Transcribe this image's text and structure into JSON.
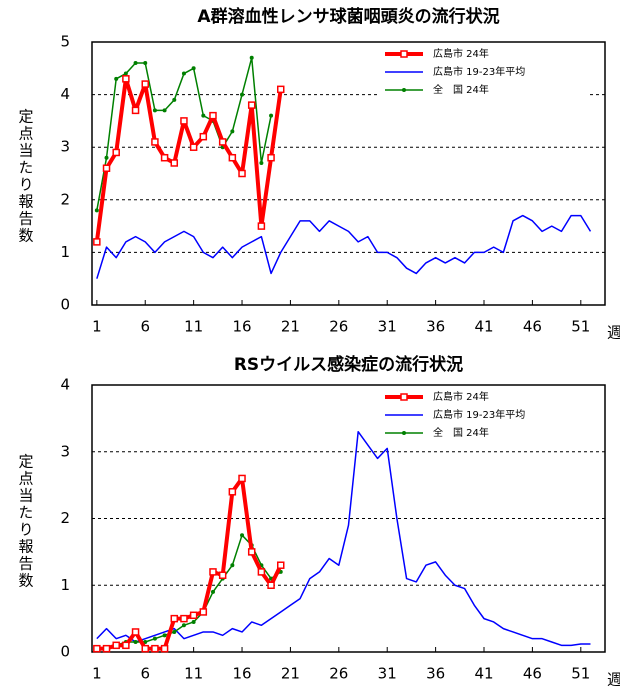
{
  "chart_data": [
    {
      "type": "line",
      "title": "A群溶血性レンサ球菌咽頭炎の流行状況",
      "y_label": "定点当たり報告数",
      "x_label": "週",
      "x": [
        1,
        2,
        3,
        4,
        5,
        6,
        7,
        8,
        9,
        10,
        11,
        12,
        13,
        14,
        15,
        16,
        17,
        18,
        19,
        20,
        21,
        22,
        23,
        24,
        25,
        26,
        27,
        28,
        29,
        30,
        31,
        32,
        33,
        34,
        35,
        36,
        37,
        38,
        39,
        40,
        41,
        42,
        43,
        44,
        45,
        46,
        47,
        48,
        49,
        50,
        51,
        52
      ],
      "xlim": [
        0.5,
        53.5
      ],
      "xticks": [
        1,
        6,
        11,
        16,
        21,
        26,
        31,
        36,
        41,
        46,
        51
      ],
      "ylim": [
        0,
        5
      ],
      "yticks": [
        0,
        1,
        2,
        3,
        4,
        5
      ],
      "grid": true,
      "legend": "upper right",
      "series": [
        {
          "name": "広島市 24年",
          "color": "#ff0000",
          "values": [
            1.2,
            2.6,
            2.9,
            4.3,
            3.7,
            4.2,
            3.1,
            2.8,
            2.7,
            3.5,
            3.0,
            3.2,
            3.6,
            3.1,
            2.8,
            2.5,
            3.8,
            1.5,
            2.8,
            4.1,
            null,
            null,
            null,
            null,
            null,
            null,
            null,
            null,
            null,
            null,
            null,
            null,
            null,
            null,
            null,
            null,
            null,
            null,
            null,
            null,
            null,
            null,
            null,
            null,
            null,
            null,
            null,
            null,
            null,
            null,
            null,
            null
          ]
        },
        {
          "name": "広島市 19-23年平均",
          "color": "#0000ff",
          "values": [
            0.5,
            1.1,
            0.9,
            1.2,
            1.3,
            1.2,
            1.0,
            1.2,
            1.3,
            1.4,
            1.3,
            1.0,
            0.9,
            1.1,
            0.9,
            1.1,
            1.2,
            1.3,
            0.6,
            1.0,
            1.3,
            1.6,
            1.6,
            1.4,
            1.6,
            1.5,
            1.4,
            1.2,
            1.3,
            1.0,
            1.0,
            0.9,
            0.7,
            0.6,
            0.8,
            0.9,
            0.8,
            0.9,
            0.8,
            1.0,
            1.0,
            1.1,
            1.0,
            1.6,
            1.7,
            1.6,
            1.4,
            1.5,
            1.4,
            1.7,
            1.7,
            1.4
          ]
        },
        {
          "name": "全　国 24年",
          "color": "#008000",
          "values": [
            1.8,
            2.8,
            4.3,
            4.4,
            4.6,
            4.6,
            3.7,
            3.7,
            3.9,
            4.4,
            4.5,
            3.6,
            3.5,
            3.0,
            3.3,
            4.0,
            4.7,
            2.7,
            3.6,
            null,
            null,
            null,
            null,
            null,
            null,
            null,
            null,
            null,
            null,
            null,
            null,
            null,
            null,
            null,
            null,
            null,
            null,
            null,
            null,
            null,
            null,
            null,
            null,
            null,
            null,
            null,
            null,
            null,
            null,
            null,
            null,
            null
          ]
        }
      ]
    },
    {
      "type": "line",
      "title": "RSウイルス感染症の流行状況",
      "y_label": "定点当たり報告数",
      "x_label": "週",
      "x": [
        1,
        2,
        3,
        4,
        5,
        6,
        7,
        8,
        9,
        10,
        11,
        12,
        13,
        14,
        15,
        16,
        17,
        18,
        19,
        20,
        21,
        22,
        23,
        24,
        25,
        26,
        27,
        28,
        29,
        30,
        31,
        32,
        33,
        34,
        35,
        36,
        37,
        38,
        39,
        40,
        41,
        42,
        43,
        44,
        45,
        46,
        47,
        48,
        49,
        50,
        51,
        52
      ],
      "xlim": [
        0.5,
        53.5
      ],
      "xticks": [
        1,
        6,
        11,
        16,
        21,
        26,
        31,
        36,
        41,
        46,
        51
      ],
      "ylim": [
        0,
        4
      ],
      "yticks": [
        0,
        1,
        2,
        3,
        4
      ],
      "grid": true,
      "legend": "upper right",
      "series": [
        {
          "name": "広島市 24年",
          "color": "#ff0000",
          "values": [
            0.05,
            0.05,
            0.1,
            0.1,
            0.3,
            0.05,
            0.05,
            0.05,
            0.5,
            0.5,
            0.55,
            0.6,
            1.2,
            1.15,
            2.4,
            2.6,
            1.5,
            1.2,
            1.0,
            1.3,
            null,
            null,
            null,
            null,
            null,
            null,
            null,
            null,
            null,
            null,
            null,
            null,
            null,
            null,
            null,
            null,
            null,
            null,
            null,
            null,
            null,
            null,
            null,
            null,
            null,
            null,
            null,
            null,
            null,
            null,
            null,
            null
          ]
        },
        {
          "name": "広島市 19-23年平均",
          "color": "#0000ff",
          "values": [
            0.2,
            0.35,
            0.2,
            0.25,
            0.15,
            0.2,
            0.25,
            0.3,
            0.35,
            0.2,
            0.25,
            0.3,
            0.3,
            0.25,
            0.35,
            0.3,
            0.45,
            0.4,
            0.5,
            0.6,
            0.7,
            0.8,
            1.1,
            1.2,
            1.4,
            1.3,
            1.9,
            3.3,
            3.1,
            2.9,
            3.05,
            2.0,
            1.1,
            1.05,
            1.3,
            1.35,
            1.15,
            1.0,
            0.95,
            0.7,
            0.5,
            0.45,
            0.35,
            0.3,
            0.25,
            0.2,
            0.2,
            0.15,
            0.1,
            0.1,
            0.12,
            0.12
          ]
        },
        {
          "name": "全　国 24年",
          "color": "#008000",
          "values": [
            0.05,
            0.05,
            0.1,
            0.15,
            0.15,
            0.15,
            0.2,
            0.25,
            0.3,
            0.4,
            0.45,
            0.6,
            0.9,
            1.1,
            1.3,
            1.75,
            1.6,
            1.3,
            1.1,
            1.2,
            null,
            null,
            null,
            null,
            null,
            null,
            null,
            null,
            null,
            null,
            null,
            null,
            null,
            null,
            null,
            null,
            null,
            null,
            null,
            null,
            null,
            null,
            null,
            null,
            null,
            null,
            null,
            null,
            null,
            null,
            null,
            null
          ]
        }
      ]
    }
  ]
}
